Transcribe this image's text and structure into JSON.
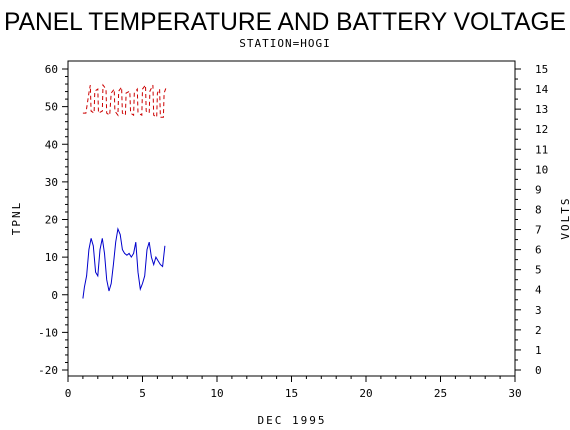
{
  "chart_data": {
    "type": "line",
    "title": "PANEL TEMPERATURE AND BATTERY VOLTAGE",
    "subtitle": "STATION=HOGI",
    "xlabel": "DEC 1995",
    "ylabel": "TPNL",
    "y2label": "VOLTS",
    "xlim": [
      0,
      30
    ],
    "ylim": [
      -20,
      60
    ],
    "y2lim": [
      0,
      15
    ],
    "x_ticks": [
      0,
      5,
      10,
      15,
      20,
      25,
      30
    ],
    "y_ticks": [
      -20,
      -10,
      0,
      10,
      20,
      30,
      40,
      50,
      60
    ],
    "y2_ticks": [
      0,
      1,
      2,
      3,
      4,
      5,
      6,
      7,
      8,
      9,
      10,
      11,
      12,
      13,
      14,
      15
    ],
    "grid": false,
    "series": [
      {
        "axis": "left",
        "color": "#0000cc",
        "style": "solid",
        "x": [
          1.0,
          1.1,
          1.25,
          1.4,
          1.55,
          1.7,
          1.85,
          2.0,
          2.15,
          2.3,
          2.45,
          2.6,
          2.75,
          2.9,
          3.05,
          3.2,
          3.35,
          3.5,
          3.65,
          3.8,
          3.95,
          4.1,
          4.25,
          4.4,
          4.55,
          4.7,
          4.85,
          5.0,
          5.15,
          5.3,
          5.45,
          5.6,
          5.75,
          5.9,
          6.05,
          6.2,
          6.35,
          6.5
        ],
        "y": [
          -1,
          2,
          5,
          12,
          15,
          13,
          6,
          5,
          12,
          15,
          11,
          4,
          1,
          3,
          8,
          14,
          17.5,
          16,
          12,
          11,
          10.5,
          11,
          10,
          11,
          14,
          6,
          1.5,
          3,
          5,
          12,
          14,
          10,
          8,
          10,
          9,
          8,
          7.5,
          13
        ]
      },
      {
        "axis": "right",
        "color": "#cc0000",
        "style": "dashed",
        "x": [
          1.0,
          1.2,
          1.4,
          1.5,
          1.55,
          1.75,
          1.8,
          2.0,
          2.05,
          2.3,
          2.35,
          2.55,
          2.6,
          2.8,
          2.9,
          3.1,
          3.15,
          3.35,
          3.4,
          3.6,
          3.65,
          3.85,
          3.9,
          4.15,
          4.2,
          4.4,
          4.45,
          4.65,
          4.7,
          4.95,
          5.0,
          5.2,
          5.25,
          5.45,
          5.5,
          5.7,
          5.75,
          5.95,
          6.0,
          6.15,
          6.2,
          6.4,
          6.45,
          6.6
        ],
        "y": [
          12.8,
          12.8,
          13.8,
          14.2,
          12.9,
          12.8,
          13.9,
          14.0,
          12.8,
          12.9,
          14.2,
          14.0,
          12.8,
          12.7,
          13.8,
          14.0,
          12.9,
          12.7,
          13.9,
          14.1,
          12.8,
          12.7,
          13.8,
          13.9,
          12.8,
          12.7,
          13.8,
          14.0,
          12.8,
          12.7,
          14.0,
          14.2,
          12.9,
          12.8,
          13.9,
          14.2,
          12.7,
          12.6,
          13.8,
          14.0,
          12.6,
          12.6,
          13.8,
          14.1
        ]
      }
    ]
  }
}
